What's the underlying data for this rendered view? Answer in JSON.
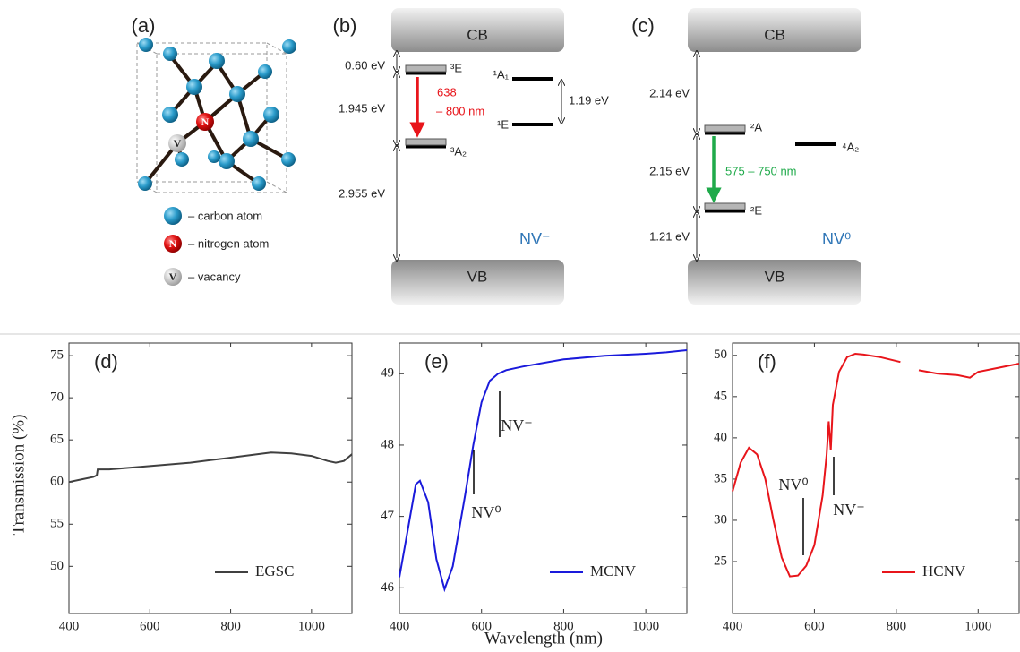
{
  "diagrams": {
    "a": {
      "label": "(a)",
      "nitrogen": "N",
      "vacancy": "V",
      "legend": [
        "– carbon atom",
        "– nitrogen atom",
        "– vacancy"
      ]
    },
    "b": {
      "label": "(b)",
      "cb": "CB",
      "vb": "VB",
      "gap_top": "0.60 eV",
      "gap_mid": "1.945 eV",
      "gap_bottom": "2.955 eV",
      "state_3e": "³E",
      "state_3a2": "³A₂",
      "state_1a1": "¹A₁",
      "state_1e": "¹E",
      "singlet_gap": "1.19 eV",
      "emission_1": "638",
      "emission_2": "– 800 nm",
      "center": "NV⁻"
    },
    "c": {
      "label": "(c)",
      "cb": "CB",
      "vb": "VB",
      "gap_top": "2.14 eV",
      "gap_mid": "2.15 eV",
      "gap_bottom": "1.21 eV",
      "state_2a": "²A",
      "state_2e": "²E",
      "state_4a2": "⁴A₂",
      "emission": "575 – 750 nm",
      "center": "NV⁰"
    }
  },
  "chart_data": [
    {
      "type": "line",
      "title": "(d)",
      "ylabel": "Transmission (%)",
      "x": [
        400,
        430,
        460,
        469,
        471,
        500,
        550,
        600,
        650,
        700,
        750,
        800,
        850,
        900,
        950,
        1000,
        1040,
        1060,
        1080,
        1100
      ],
      "series": [
        {
          "name": "EGSC",
          "color": "#404040",
          "values": [
            60,
            60.3,
            60.6,
            60.8,
            61.5,
            61.5,
            61.7,
            61.9,
            62.1,
            62.3,
            62.6,
            62.9,
            63.2,
            63.5,
            63.4,
            63.1,
            62.5,
            62.3,
            62.5,
            63.3
          ]
        }
      ],
      "xlim": [
        400,
        1100
      ],
      "ylim": [
        44.4,
        76.5
      ],
      "xticks": [
        400,
        600,
        800,
        1000
      ],
      "yticks": [
        50,
        55,
        60,
        65,
        70,
        75
      ]
    },
    {
      "type": "line",
      "title": "(e)",
      "xlabel": "Wavelength (nm)",
      "x": [
        400,
        420,
        440,
        450,
        470,
        490,
        510,
        530,
        560,
        580,
        600,
        620,
        640,
        660,
        700,
        800,
        900,
        1000,
        1050,
        1100
      ],
      "series": [
        {
          "name": "MCNV",
          "color": "#1a1adb",
          "values": [
            46.15,
            46.8,
            47.45,
            47.5,
            47.2,
            46.4,
            45.98,
            46.3,
            47.3,
            48.0,
            48.6,
            48.9,
            49.0,
            49.05,
            49.1,
            49.2,
            49.25,
            49.28,
            49.3,
            49.33
          ]
        }
      ],
      "annotations": [
        "NV⁰",
        "NV⁻"
      ],
      "xlim": [
        400,
        1100
      ],
      "ylim": [
        45.64,
        49.43
      ],
      "xticks": [
        400,
        600,
        800,
        1000
      ],
      "yticks": [
        46,
        47,
        48,
        49
      ]
    },
    {
      "type": "line",
      "title": "(f)",
      "x": [
        400,
        420,
        440,
        460,
        480,
        500,
        520,
        540,
        560,
        580,
        600,
        620,
        630,
        635,
        640,
        645,
        660,
        680,
        700,
        720,
        760,
        810,
        830,
        855,
        900,
        950,
        980,
        1000,
        1050,
        1100
      ],
      "series": [
        {
          "name": "HCNV",
          "color": "#e8151b",
          "values": [
            33.5,
            37,
            38.8,
            38,
            35,
            30,
            25.5,
            23.2,
            23.3,
            24.5,
            27,
            33,
            38,
            42,
            38.5,
            44,
            48,
            49.8,
            50.2,
            50.1,
            49.8,
            49.2,
            null,
            48.2,
            47.8,
            47.6,
            47.3,
            48.0,
            48.5,
            49.0
          ]
        }
      ],
      "annotations": [
        "NV⁰",
        "NV⁻"
      ],
      "xlim": [
        400,
        1100
      ],
      "ylim": [
        18.7,
        51.5
      ],
      "xticks": [
        400,
        600,
        800,
        1000
      ],
      "yticks": [
        25,
        30,
        35,
        40,
        45,
        50
      ]
    }
  ]
}
